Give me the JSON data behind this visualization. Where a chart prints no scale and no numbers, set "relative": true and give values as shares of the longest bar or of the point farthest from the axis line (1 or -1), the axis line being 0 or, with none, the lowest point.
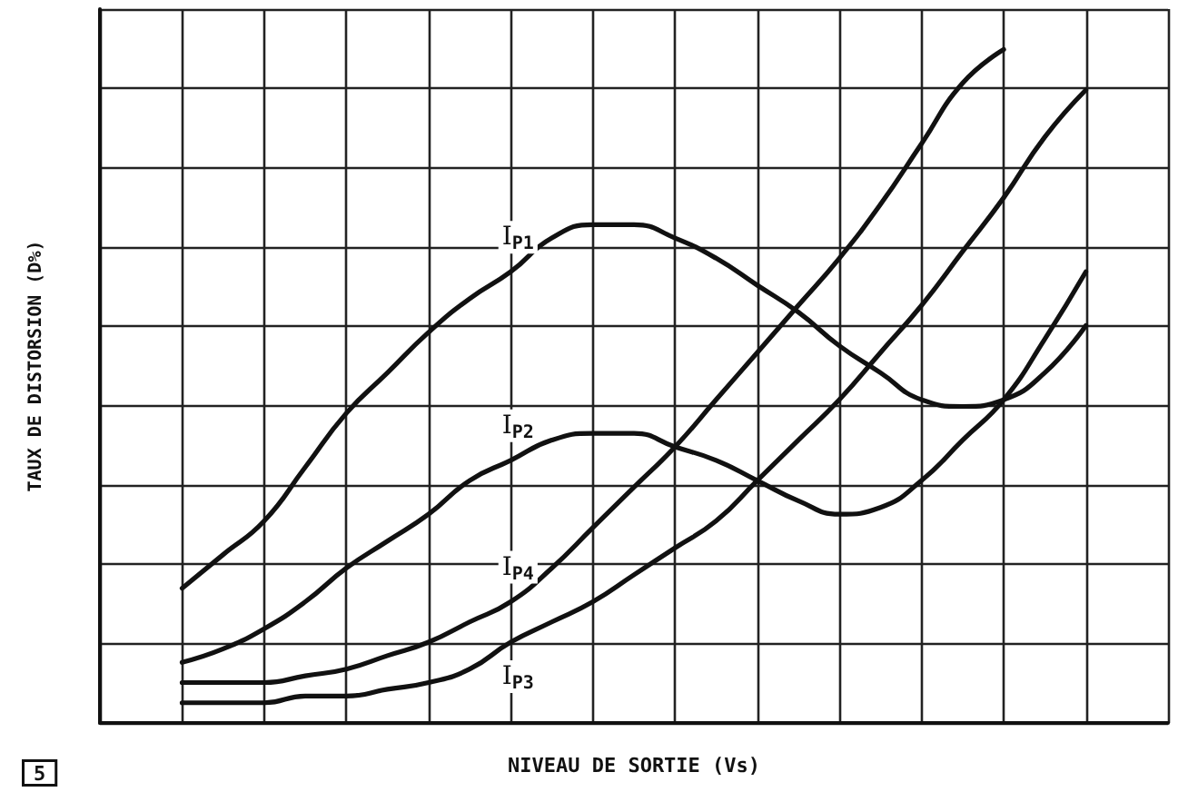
{
  "chart_data": {
    "type": "line",
    "relative": true,
    "xlabel": "NIVEAU DE SORTIE (Vs)",
    "ylabel": "TAUX DE DISTORSION (D%)",
    "annotations": [
      "5"
    ],
    "categories": [
      null,
      null,
      null,
      null,
      null,
      null,
      null,
      null,
      null,
      null,
      null,
      null,
      null,
      null,
      null,
      null,
      null,
      null,
      null,
      null,
      null,
      null,
      null,
      null,
      null,
      null,
      null
    ],
    "series": [
      {
        "name": "I$_{P1}$",
        "color": "#111111",
        "values": [
          null,
          null,
          0.2,
          0.25,
          0.3,
          0.38,
          0.46,
          0.52,
          0.58,
          0.63,
          0.67,
          0.72,
          0.74,
          0.74,
          0.72,
          0.69,
          0.65,
          0.61,
          0.56,
          0.52,
          0.48,
          0.47,
          0.48,
          0.52,
          0.59,
          null,
          null
        ]
      },
      {
        "name": "I$_{P2}$",
        "color": "#111111",
        "values": [
          null,
          null,
          0.09,
          0.11,
          0.14,
          0.18,
          0.23,
          0.27,
          0.31,
          0.36,
          0.39,
          0.42,
          0.43,
          0.43,
          0.41,
          0.39,
          0.36,
          0.33,
          0.31,
          0.32,
          0.36,
          0.42,
          0.48,
          0.57,
          0.67,
          null,
          null
        ]
      },
      {
        "name": "I$_{P4}$",
        "color": "#111111",
        "values": [
          null,
          null,
          0.06,
          0.06,
          0.06,
          0.07,
          0.08,
          0.1,
          0.12,
          0.15,
          0.18,
          0.23,
          0.29,
          0.35,
          0.41,
          0.48,
          0.55,
          0.62,
          0.69,
          0.77,
          0.86,
          0.95,
          1,
          null,
          null,
          null,
          null
        ]
      },
      {
        "name": "I$_{P3}$",
        "color": "#111111",
        "values": [
          null,
          null,
          0.03,
          0.03,
          0.03,
          0.04,
          0.04,
          0.05,
          0.06,
          0.08,
          0.12,
          0.15,
          0.18,
          0.22,
          0.26,
          0.3,
          0.36,
          0.42,
          0.48,
          0.55,
          0.62,
          0.7,
          0.78,
          0.87,
          0.94,
          null,
          null
        ]
      }
    ],
    "grid": true,
    "legend": false,
    "marker": "none",
    "line_style": "solid"
  }
}
